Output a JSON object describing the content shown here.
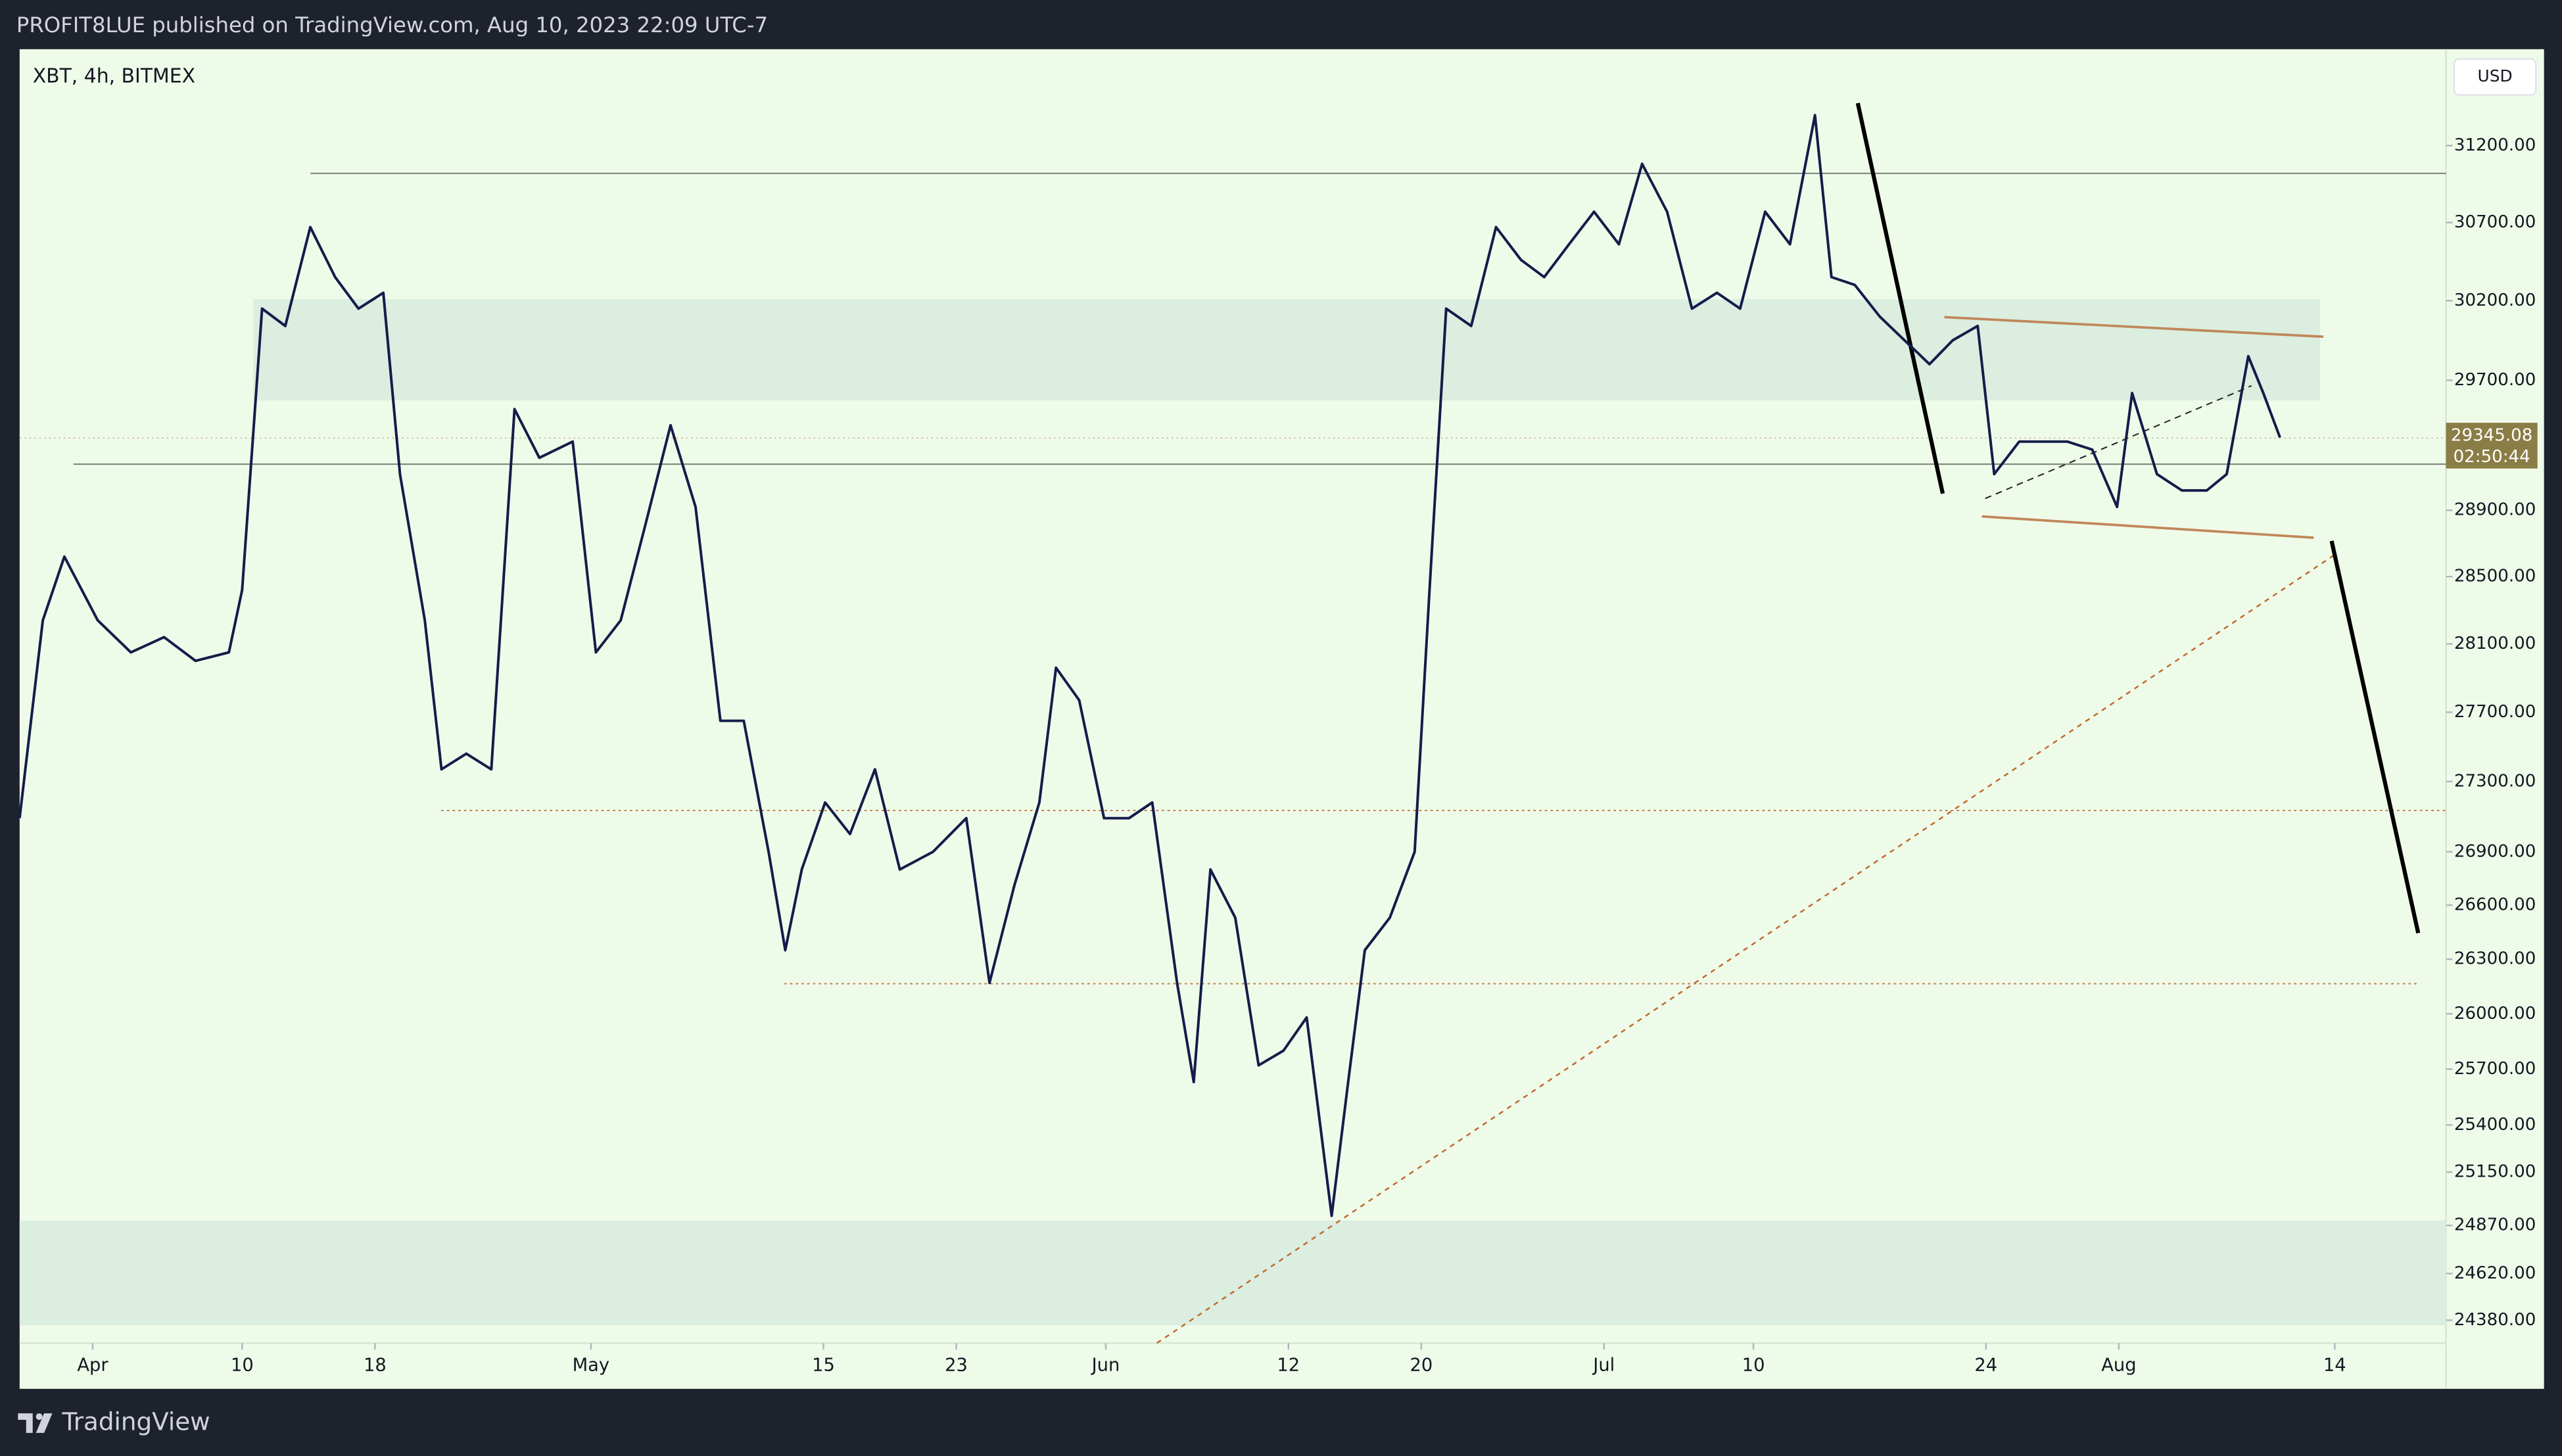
{
  "header": "PROFIT8LUE published on TradingView.com, Aug 10, 2023 22:09 UTC-7",
  "footer": "TradingView",
  "chart_data": {
    "type": "line",
    "title": "XBT, 4h, BITMEX",
    "currency": "USD",
    "last_price": {
      "value": 29345.08,
      "label": "29345.08"
    },
    "countdown": "02:50:44",
    "color": "#131d4a",
    "log_scale": true,
    "grid": false,
    "xlim": [
      86.6,
      232.7
    ],
    "ylim": [
      24263,
      31838
    ],
    "xticks": [
      {
        "value": 91,
        "label": "Apr"
      },
      {
        "value": 100,
        "label": "10"
      },
      {
        "value": 108,
        "label": "18"
      },
      {
        "value": 121,
        "label": "May"
      },
      {
        "value": 135,
        "label": "15"
      },
      {
        "value": 143,
        "label": "23"
      },
      {
        "value": 152,
        "label": "Jun"
      },
      {
        "value": 163,
        "label": "12"
      },
      {
        "value": 171,
        "label": "20"
      },
      {
        "value": 182,
        "label": "Jul"
      },
      {
        "value": 191,
        "label": "10"
      },
      {
        "value": 205,
        "label": "24"
      },
      {
        "value": 213,
        "label": "Aug"
      },
      {
        "value": 226,
        "label": "14"
      }
    ],
    "yticks": [
      {
        "value": 31200,
        "label": "31200.00"
      },
      {
        "value": 30700,
        "label": "30700.00"
      },
      {
        "value": 30200,
        "label": "30200.00"
      },
      {
        "value": 29700,
        "label": "29700.00"
      },
      {
        "value": 28900,
        "label": "28900.00"
      },
      {
        "value": 28500,
        "label": "28500.00"
      },
      {
        "value": 28100,
        "label": "28100.00"
      },
      {
        "value": 27700,
        "label": "27700.00"
      },
      {
        "value": 27300,
        "label": "27300.00"
      },
      {
        "value": 26900,
        "label": "26900.00"
      },
      {
        "value": 26600,
        "label": "26600.00"
      },
      {
        "value": 26300,
        "label": "26300.00"
      },
      {
        "value": 26000,
        "label": "26000.00"
      },
      {
        "value": 25700,
        "label": "25700.00"
      },
      {
        "value": 25400,
        "label": "25400.00"
      },
      {
        "value": 25150,
        "label": "25150.00"
      },
      {
        "value": 24870,
        "label": "24870.00"
      },
      {
        "value": 24620,
        "label": "24620.00"
      },
      {
        "value": 24380,
        "label": "24380.00"
      }
    ],
    "x": [
      86.6,
      88,
      89.3,
      91.3,
      93.3,
      95.3,
      97.2,
      99.2,
      100,
      101.2,
      102.6,
      104.1,
      105.6,
      107,
      108.5,
      109.5,
      111,
      112,
      113.5,
      115,
      116.4,
      117.9,
      119.9,
      121.3,
      122.8,
      124.3,
      125.8,
      127.3,
      128.8,
      130.2,
      131.7,
      132.7,
      133.7,
      135.1,
      136.6,
      138.1,
      139.6,
      141.6,
      143.6,
      145,
      146.5,
      148,
      149,
      150.4,
      151.9,
      153.4,
      154.8,
      156.3,
      157.3,
      158.3,
      159.8,
      161.2,
      162.7,
      164.1,
      165.6,
      166.6,
      167.6,
      169.1,
      170.6,
      171.5,
      172.5,
      174,
      175.5,
      177,
      178.4,
      179.9,
      181.4,
      182.9,
      184.3,
      185.8,
      187.3,
      188.8,
      190.2,
      191.7,
      193.2,
      194.7,
      195.7,
      197.1,
      198.6,
      200.1,
      201.6,
      203,
      204.5,
      205.5,
      207,
      208.4,
      209.9,
      211.4,
      212.9,
      213.8,
      215.3,
      216.8,
      218.3,
      219.5,
      220.8,
      221.7,
      222.7
    ],
    "values": [
      27090,
      28240,
      28620,
      28240,
      28050,
      28140,
      28000,
      28050,
      28420,
      30150,
      30040,
      30670,
      30350,
      30150,
      30250,
      29120,
      28240,
      27370,
      27460,
      27370,
      29520,
      29220,
      29320,
      28050,
      28240,
      28820,
      29420,
      28920,
      27650,
      27650,
      26900,
      26350,
      26800,
      27180,
      27000,
      27370,
      26800,
      26900,
      27090,
      26170,
      26710,
      27180,
      27960,
      27770,
      27090,
      27090,
      27180,
      26170,
      25630,
      26800,
      26530,
      25720,
      25800,
      25980,
      24920,
      25630,
      26350,
      26530,
      26900,
      28420,
      30150,
      30040,
      30670,
      30460,
      30350,
      30560,
      30770,
      30560,
      31080,
      30770,
      30150,
      30250,
      30150,
      30770,
      30560,
      31400,
      30350,
      30300,
      30100,
      29950,
      29800,
      29950,
      30040,
      29120,
      29320,
      29320,
      29320,
      29270,
      28920,
      29620,
      29120,
      29020,
      29020,
      29120,
      29850,
      29620,
      29345.08
    ]
  }
}
